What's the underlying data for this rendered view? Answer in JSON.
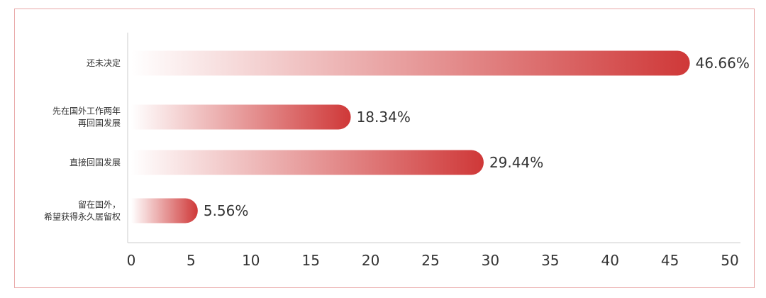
{
  "chart_data": {
    "type": "bar",
    "orientation": "horizontal",
    "categories": [
      [
        "还未决定"
      ],
      [
        "先在国外工作两年",
        "再回国发展"
      ],
      [
        "直接回国发展"
      ],
      [
        "留在国外，",
        "希望获得永久居留权"
      ]
    ],
    "values": [
      46.66,
      18.34,
      29.44,
      5.56
    ],
    "value_labels": [
      "46.66%",
      "18.34%",
      "29.44%",
      "5.56%"
    ],
    "xlim": [
      0,
      50
    ],
    "xticks": [
      0,
      5,
      10,
      15,
      20,
      25,
      30,
      35,
      40,
      45,
      50
    ],
    "title": "",
    "xlabel": "",
    "ylabel": "",
    "grid": false,
    "colors": {
      "bar_start": "#ffffff",
      "bar_end": "#cf3838",
      "frame": "#e9a8a8",
      "axis": "#cccccc",
      "text": "#333333"
    }
  }
}
